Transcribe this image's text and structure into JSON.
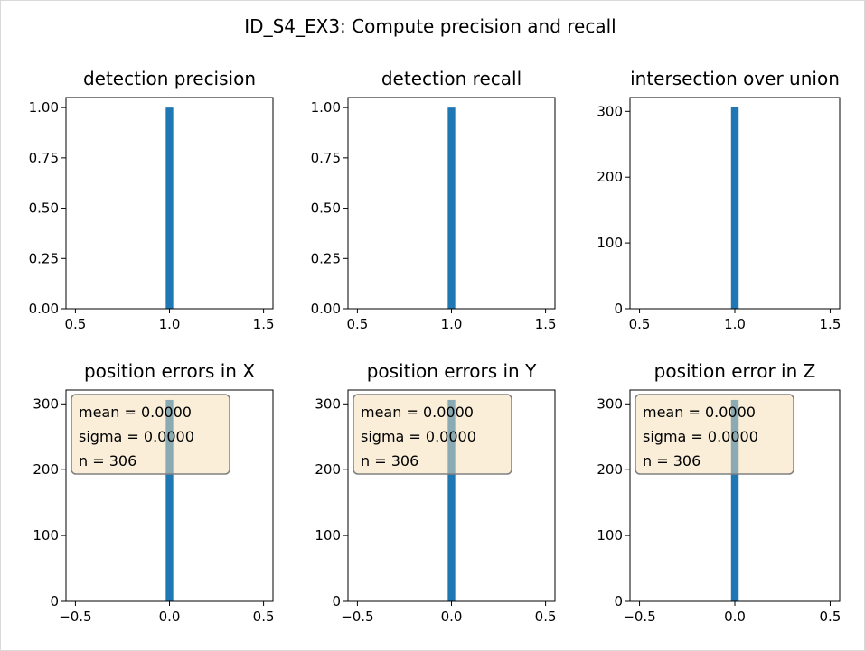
{
  "figure": {
    "title": "ID_S4_EX3: Compute precision and recall"
  },
  "colors": {
    "bar": "#1f77b4",
    "annotation_fill": "#f5deb3",
    "annotation_edge": "#808080",
    "axis": "#000000"
  },
  "chart_data": [
    {
      "type": "bar",
      "title": "detection precision",
      "bars": [
        {
          "x": 1.0,
          "height": 1.0
        }
      ],
      "bar_width": 0.04,
      "xlim": [
        0.45,
        1.55
      ],
      "ylim": [
        0,
        1.05
      ],
      "xticks": [
        0.5,
        1.0,
        1.5
      ],
      "xtick_labels": [
        "0.5",
        "1.0",
        "1.5"
      ],
      "yticks": [
        0,
        0.25,
        0.5,
        0.75,
        1.0
      ],
      "ytick_labels": [
        "0.00",
        "0.25",
        "0.50",
        "0.75",
        "1.00"
      ],
      "annotation": null
    },
    {
      "type": "bar",
      "title": "detection recall",
      "bars": [
        {
          "x": 1.0,
          "height": 1.0
        }
      ],
      "bar_width": 0.04,
      "xlim": [
        0.45,
        1.55
      ],
      "ylim": [
        0,
        1.05
      ],
      "xticks": [
        0.5,
        1.0,
        1.5
      ],
      "xtick_labels": [
        "0.5",
        "1.0",
        "1.5"
      ],
      "yticks": [
        0,
        0.25,
        0.5,
        0.75,
        1.0
      ],
      "ytick_labels": [
        "0.00",
        "0.25",
        "0.50",
        "0.75",
        "1.00"
      ],
      "annotation": null
    },
    {
      "type": "bar",
      "title": "intersection over union",
      "bars": [
        {
          "x": 1.0,
          "height": 306
        }
      ],
      "bar_width": 0.04,
      "xlim": [
        0.45,
        1.55
      ],
      "ylim": [
        0,
        321
      ],
      "xticks": [
        0.5,
        1.0,
        1.5
      ],
      "xtick_labels": [
        "0.5",
        "1.0",
        "1.5"
      ],
      "yticks": [
        0,
        100,
        200,
        300
      ],
      "ytick_labels": [
        "0",
        "100",
        "200",
        "300"
      ],
      "annotation": null
    },
    {
      "type": "bar",
      "title": "position errors in X",
      "bars": [
        {
          "x": 0.0,
          "height": 306
        }
      ],
      "bar_width": 0.04,
      "xlim": [
        -0.55,
        0.55
      ],
      "ylim": [
        0,
        321
      ],
      "xticks": [
        -0.5,
        0.0,
        0.5
      ],
      "xtick_labels": [
        "−0.5",
        "0.0",
        "0.5"
      ],
      "yticks": [
        0,
        100,
        200,
        300
      ],
      "ytick_labels": [
        "0",
        "100",
        "200",
        "300"
      ],
      "annotation": {
        "lines": [
          "mean = 0.0000",
          "sigma = 0.0000",
          "n = 306"
        ]
      }
    },
    {
      "type": "bar",
      "title": "position errors in Y",
      "bars": [
        {
          "x": 0.0,
          "height": 306
        }
      ],
      "bar_width": 0.04,
      "xlim": [
        -0.55,
        0.55
      ],
      "ylim": [
        0,
        321
      ],
      "xticks": [
        -0.5,
        0.0,
        0.5
      ],
      "xtick_labels": [
        "−0.5",
        "0.0",
        "0.5"
      ],
      "yticks": [
        0,
        100,
        200,
        300
      ],
      "ytick_labels": [
        "0",
        "100",
        "200",
        "300"
      ],
      "annotation": {
        "lines": [
          "mean = 0.0000",
          "sigma = 0.0000",
          "n = 306"
        ]
      }
    },
    {
      "type": "bar",
      "title": "position error in Z",
      "bars": [
        {
          "x": 0.0,
          "height": 306
        }
      ],
      "bar_width": 0.04,
      "xlim": [
        -0.55,
        0.55
      ],
      "ylim": [
        0,
        321
      ],
      "xticks": [
        -0.5,
        0.0,
        0.5
      ],
      "xtick_labels": [
        "−0.5",
        "0.0",
        "0.5"
      ],
      "yticks": [
        0,
        100,
        200,
        300
      ],
      "ytick_labels": [
        "0",
        "100",
        "200",
        "300"
      ],
      "annotation": {
        "lines": [
          "mean = 0.0000",
          "sigma = 0.0000",
          "n = 306"
        ]
      }
    }
  ]
}
